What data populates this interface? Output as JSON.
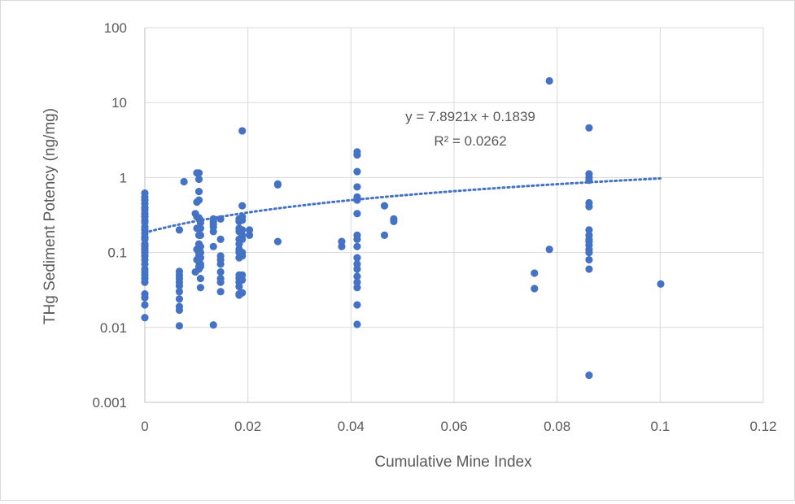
{
  "chart_data": {
    "type": "scatter",
    "title": "",
    "xlabel": "Cumulative Mine Index",
    "ylabel": "THg Sediment Potency (ng/mg)",
    "xlim": [
      0,
      0.12
    ],
    "ylim": [
      0.001,
      100
    ],
    "yscale": "log",
    "x_ticks": [
      {
        "value": 0,
        "label": "0"
      },
      {
        "value": 0.02,
        "label": "0.02"
      },
      {
        "value": 0.04,
        "label": "0.04"
      },
      {
        "value": 0.06,
        "label": "0.06"
      },
      {
        "value": 0.08,
        "label": "0.08"
      },
      {
        "value": 0.1,
        "label": "0.1"
      },
      {
        "value": 0.12,
        "label": "0.12"
      }
    ],
    "y_ticks": [
      {
        "value": 0.001,
        "label": "0.001"
      },
      {
        "value": 0.01,
        "label": "0.01"
      },
      {
        "value": 0.1,
        "label": "0.1"
      },
      {
        "value": 1,
        "label": "1"
      },
      {
        "value": 10,
        "label": "10"
      },
      {
        "value": 100,
        "label": "100"
      }
    ],
    "grid": true,
    "point_color": "#4472C4",
    "trendline": {
      "equation": "y = 7.8921x + 0.1839",
      "r_squared": "R² = 0.0262",
      "slope": 7.8921,
      "intercept": 0.1839,
      "x_range": [
        0,
        0.1
      ]
    },
    "points": [
      [
        0,
        0.62
      ],
      [
        0,
        0.55
      ],
      [
        0,
        0.5
      ],
      [
        0,
        0.45
      ],
      [
        0,
        0.4
      ],
      [
        0,
        0.37
      ],
      [
        0,
        0.33
      ],
      [
        0,
        0.3
      ],
      [
        0,
        0.27
      ],
      [
        0,
        0.25
      ],
      [
        0,
        0.22
      ],
      [
        0,
        0.2
      ],
      [
        0,
        0.18
      ],
      [
        0,
        0.16
      ],
      [
        0,
        0.15
      ],
      [
        0,
        0.13
      ],
      [
        0,
        0.12
      ],
      [
        0,
        0.11
      ],
      [
        0,
        0.1
      ],
      [
        0,
        0.09
      ],
      [
        0,
        0.08
      ],
      [
        0,
        0.07
      ],
      [
        0,
        0.06
      ],
      [
        0,
        0.055
      ],
      [
        0,
        0.05
      ],
      [
        0,
        0.045
      ],
      [
        0,
        0.04
      ],
      [
        0,
        0.028
      ],
      [
        0,
        0.025
      ],
      [
        0,
        0.02
      ],
      [
        0,
        0.0135
      ],
      [
        0.0067,
        0.2
      ],
      [
        0.0067,
        0.056
      ],
      [
        0.0067,
        0.05
      ],
      [
        0.0067,
        0.045
      ],
      [
        0.0067,
        0.04
      ],
      [
        0.0067,
        0.036
      ],
      [
        0.0067,
        0.03
      ],
      [
        0.0067,
        0.024
      ],
      [
        0.0067,
        0.019
      ],
      [
        0.0067,
        0.017
      ],
      [
        0.0067,
        0.0105
      ],
      [
        0.0076,
        0.88
      ],
      [
        0.0098,
        0.33
      ],
      [
        0.0098,
        0.055
      ],
      [
        0.0101,
        1.15
      ],
      [
        0.0101,
        0.47
      ],
      [
        0.0101,
        0.3
      ],
      [
        0.0101,
        0.21
      ],
      [
        0.0101,
        0.11
      ],
      [
        0.0101,
        0.08
      ],
      [
        0.0105,
        1.15
      ],
      [
        0.0105,
        0.95
      ],
      [
        0.0105,
        0.65
      ],
      [
        0.0105,
        0.5
      ],
      [
        0.0105,
        0.29
      ],
      [
        0.0105,
        0.21
      ],
      [
        0.0105,
        0.17
      ],
      [
        0.0105,
        0.13
      ],
      [
        0.0105,
        0.11
      ],
      [
        0.0105,
        0.1
      ],
      [
        0.0105,
        0.09
      ],
      [
        0.0105,
        0.075
      ],
      [
        0.0105,
        0.065
      ],
      [
        0.0105,
        0.06
      ],
      [
        0.0108,
        0.27
      ],
      [
        0.0108,
        0.25
      ],
      [
        0.0108,
        0.21
      ],
      [
        0.0108,
        0.17
      ],
      [
        0.0108,
        0.12
      ],
      [
        0.0108,
        0.1
      ],
      [
        0.0108,
        0.085
      ],
      [
        0.0108,
        0.07
      ],
      [
        0.0108,
        0.065
      ],
      [
        0.0108,
        0.045
      ],
      [
        0.0108,
        0.034
      ],
      [
        0.0133,
        0.28
      ],
      [
        0.0133,
        0.26
      ],
      [
        0.0133,
        0.24
      ],
      [
        0.0133,
        0.22
      ],
      [
        0.0133,
        0.19
      ],
      [
        0.0133,
        0.12
      ],
      [
        0.0133,
        0.0108
      ],
      [
        0.0147,
        0.28
      ],
      [
        0.0147,
        0.15
      ],
      [
        0.0147,
        0.09
      ],
      [
        0.0147,
        0.08
      ],
      [
        0.0147,
        0.07
      ],
      [
        0.0147,
        0.055
      ],
      [
        0.0147,
        0.045
      ],
      [
        0.0147,
        0.04
      ],
      [
        0.0147,
        0.03
      ],
      [
        0.0183,
        0.28
      ],
      [
        0.0183,
        0.26
      ],
      [
        0.0183,
        0.21
      ],
      [
        0.0183,
        0.19
      ],
      [
        0.0183,
        0.15
      ],
      [
        0.0183,
        0.13
      ],
      [
        0.0183,
        0.11
      ],
      [
        0.0183,
        0.1
      ],
      [
        0.0183,
        0.085
      ],
      [
        0.0183,
        0.05
      ],
      [
        0.0183,
        0.045
      ],
      [
        0.0183,
        0.04
      ],
      [
        0.0183,
        0.035
      ],
      [
        0.0183,
        0.028
      ],
      [
        0.0183,
        0.027
      ],
      [
        0.0189,
        4.2
      ],
      [
        0.0189,
        0.42
      ],
      [
        0.0189,
        0.3
      ],
      [
        0.0189,
        0.27
      ],
      [
        0.0189,
        0.2
      ],
      [
        0.0189,
        0.17
      ],
      [
        0.0189,
        0.15
      ],
      [
        0.0189,
        0.1
      ],
      [
        0.0189,
        0.09
      ],
      [
        0.0189,
        0.05
      ],
      [
        0.0189,
        0.043
      ],
      [
        0.0189,
        0.029
      ],
      [
        0.0203,
        0.2
      ],
      [
        0.0203,
        0.17
      ],
      [
        0.0258,
        0.82
      ],
      [
        0.0258,
        0.8
      ],
      [
        0.0258,
        0.14
      ],
      [
        0.0382,
        0.14
      ],
      [
        0.0382,
        0.12
      ],
      [
        0.0412,
        2.2
      ],
      [
        0.0412,
        2.0
      ],
      [
        0.0412,
        1.2
      ],
      [
        0.0412,
        0.75
      ],
      [
        0.0412,
        0.55
      ],
      [
        0.0412,
        0.5
      ],
      [
        0.0412,
        0.33
      ],
      [
        0.0412,
        0.17
      ],
      [
        0.0412,
        0.15
      ],
      [
        0.0412,
        0.12
      ],
      [
        0.0412,
        0.085
      ],
      [
        0.0412,
        0.07
      ],
      [
        0.0412,
        0.06
      ],
      [
        0.0412,
        0.048
      ],
      [
        0.0412,
        0.04
      ],
      [
        0.0412,
        0.034
      ],
      [
        0.0412,
        0.02
      ],
      [
        0.0412,
        0.011
      ],
      [
        0.0465,
        0.42
      ],
      [
        0.0465,
        0.17
      ],
      [
        0.0483,
        0.28
      ],
      [
        0.0483,
        0.26
      ],
      [
        0.0756,
        0.053
      ],
      [
        0.0756,
        0.033
      ],
      [
        0.0785,
        19.5
      ],
      [
        0.0785,
        0.11
      ],
      [
        0.0862,
        4.6
      ],
      [
        0.0862,
        1.12
      ],
      [
        0.0862,
        1.0
      ],
      [
        0.0862,
        0.92
      ],
      [
        0.0862,
        0.46
      ],
      [
        0.0862,
        0.41
      ],
      [
        0.0862,
        0.2
      ],
      [
        0.0862,
        0.17
      ],
      [
        0.0862,
        0.15
      ],
      [
        0.0862,
        0.14
      ],
      [
        0.0862,
        0.125
      ],
      [
        0.0862,
        0.11
      ],
      [
        0.0862,
        0.1
      ],
      [
        0.0862,
        0.08
      ],
      [
        0.0862,
        0.06
      ],
      [
        0.0862,
        0.0023
      ],
      [
        0.1001,
        0.038
      ]
    ]
  }
}
